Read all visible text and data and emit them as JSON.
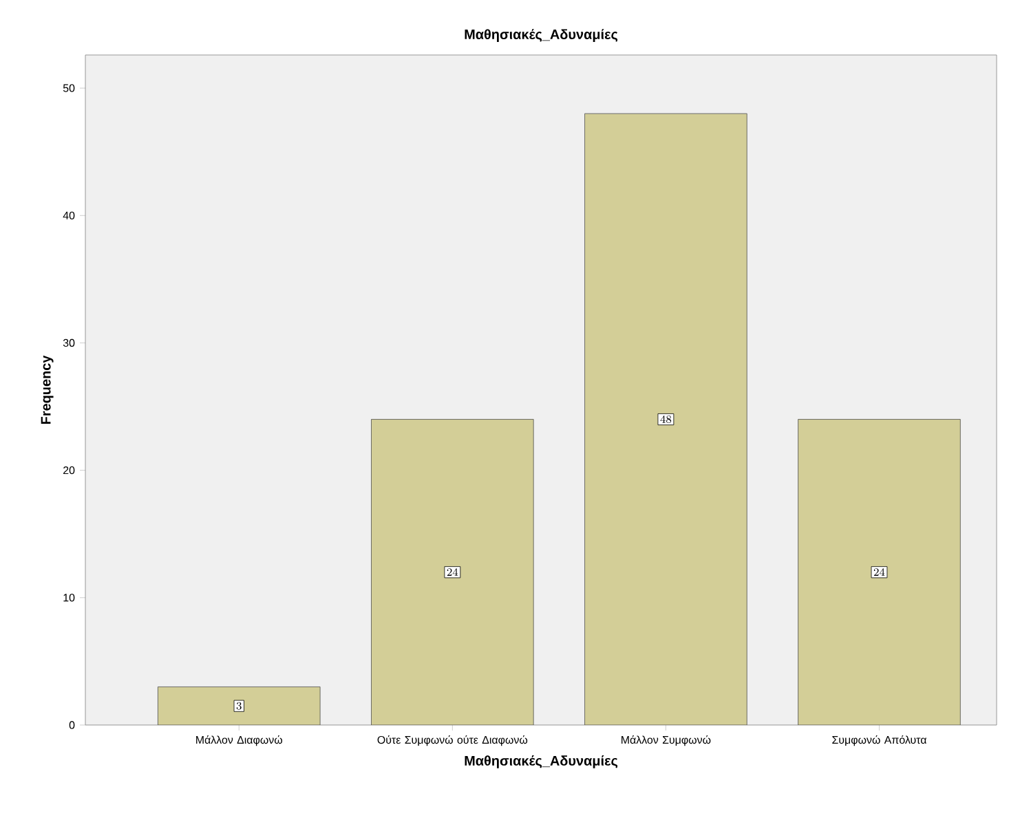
{
  "chart_data": {
    "type": "bar",
    "title": "Μαθησιακές_Αδυναμίες",
    "xlabel": "Μαθησιακές_Αδυναμίες",
    "ylabel": "Frequency",
    "categories": [
      "Μάλλον Διαφωνώ",
      "Ούτε Συμφωνώ ούτε Διαφωνώ",
      "Μάλλον Συμφωνώ",
      "Συμφωνώ Απόλυτα"
    ],
    "values": [
      3,
      24,
      48,
      24
    ],
    "color": "#d3ce97",
    "ylim": [
      0,
      52.6
    ],
    "yticks": [
      0,
      10,
      20,
      30,
      40,
      50
    ],
    "data_labels": true
  }
}
